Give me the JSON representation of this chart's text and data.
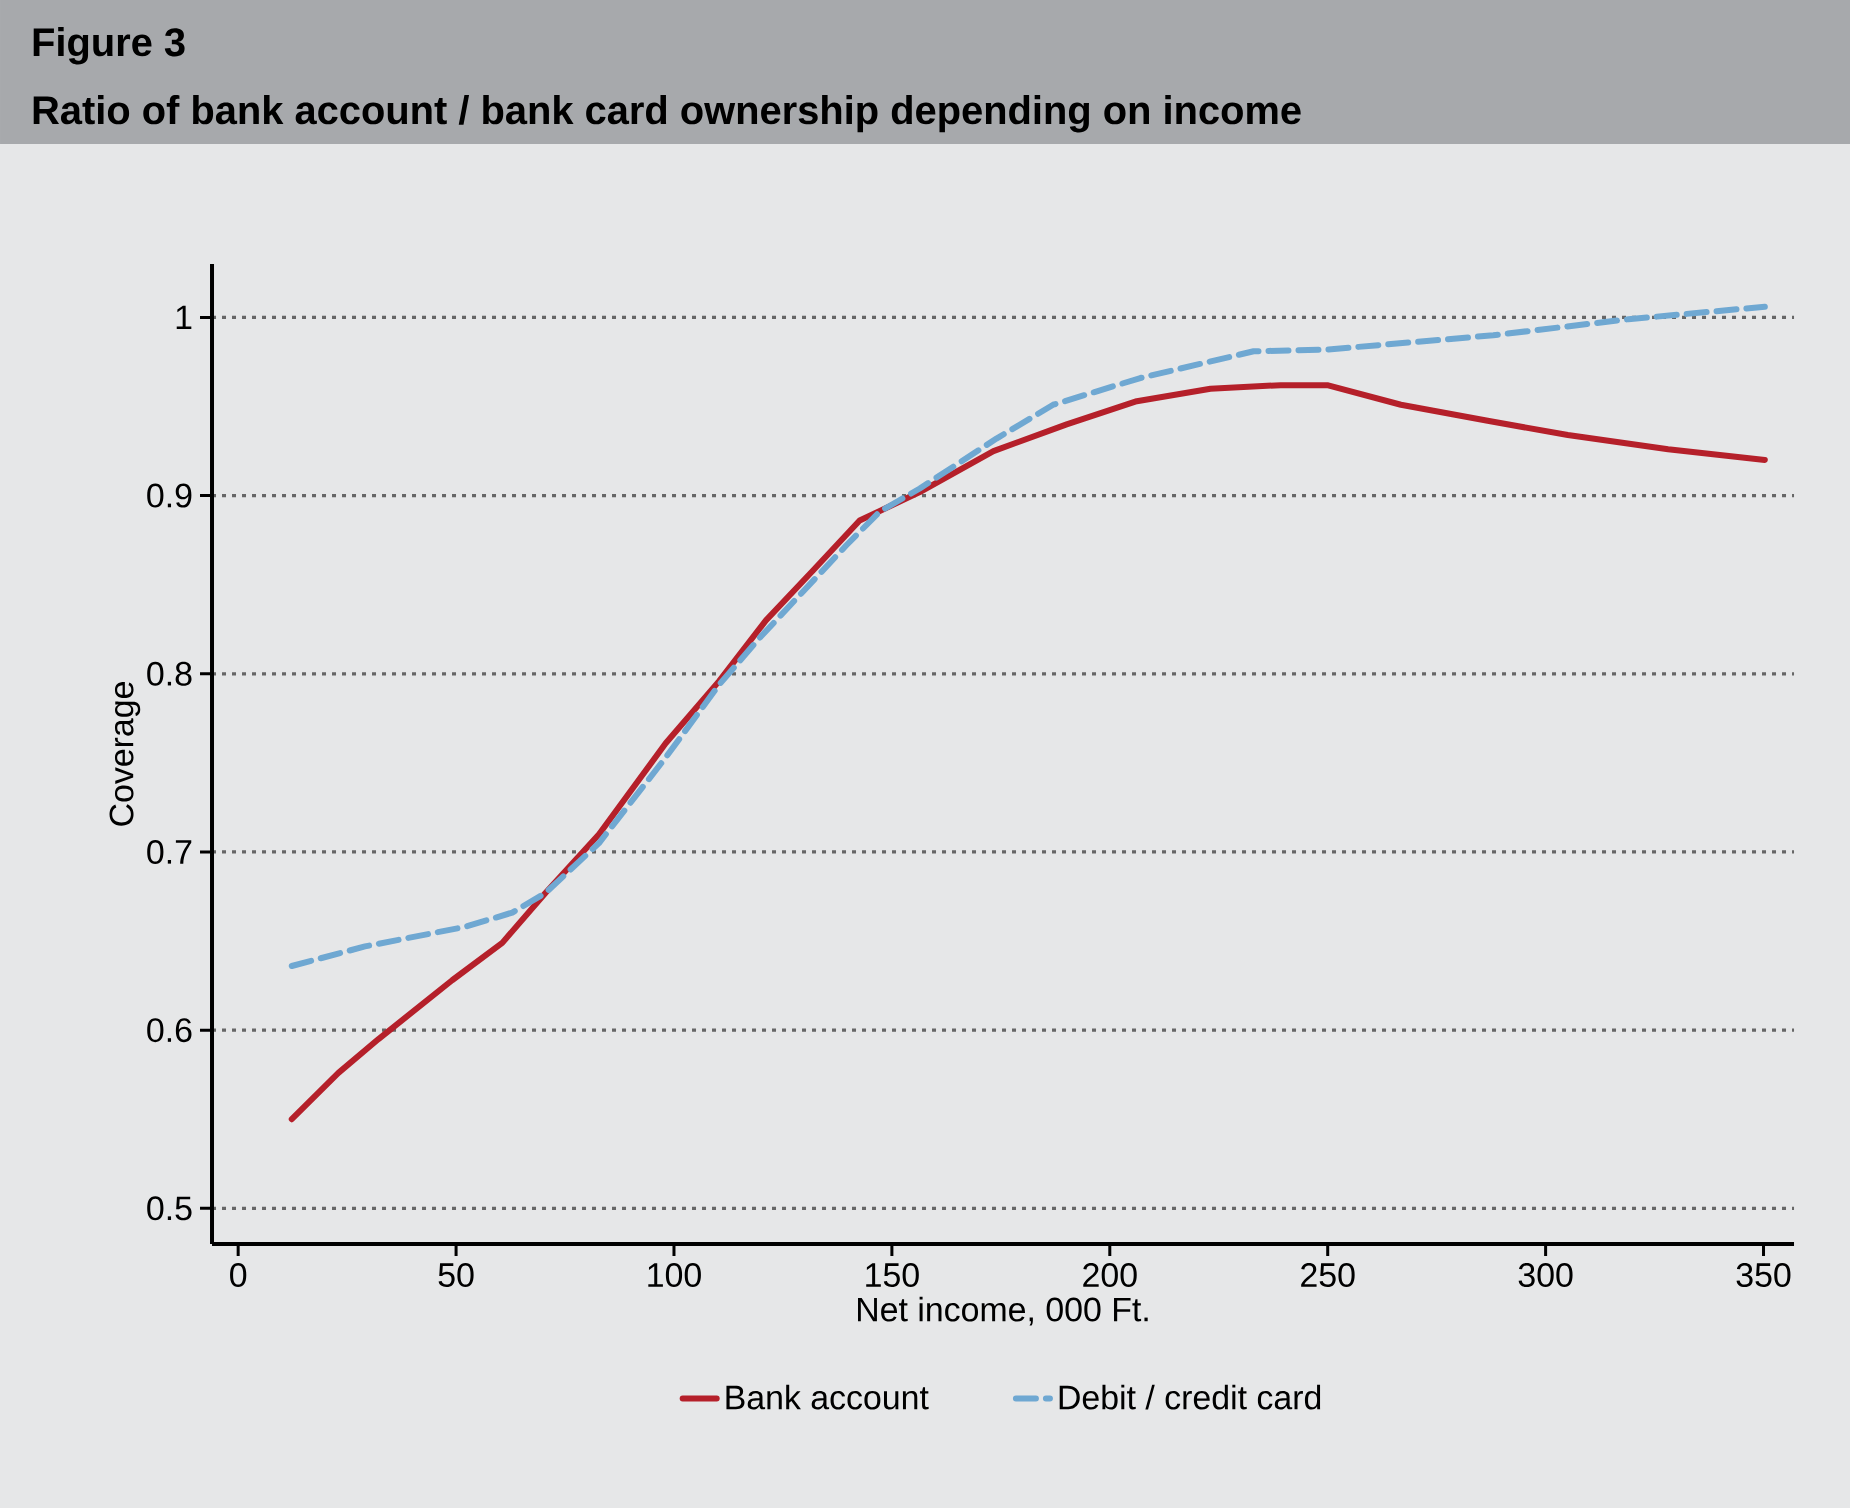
{
  "chart_data": {
    "type": "line",
    "title": "Figure 3",
    "subtitle": "Ratio of bank account / bank card ownership depending on income",
    "xlabel": "Net income, 000 Ft.",
    "ylabel": "Coverage",
    "xlim": [
      -6,
      357
    ],
    "ylim": [
      0.48,
      1.03
    ],
    "xticks": [
      0,
      50,
      100,
      150,
      200,
      250,
      300,
      350
    ],
    "yticks": [
      {
        "value": 0.5,
        "label": "0.5"
      },
      {
        "value": 0.6,
        "label": "0.6"
      },
      {
        "value": 0.7,
        "label": "0.7"
      },
      {
        "value": 0.8,
        "label": "0.8"
      },
      {
        "value": 0.9,
        "label": "0.9"
      },
      {
        "value": 1,
        "label": "1"
      }
    ],
    "grid": "y",
    "legend": "bottom",
    "marker": "none",
    "series": [
      {
        "name": "Bank account",
        "color": "#b5202a",
        "line_style": "solid",
        "x": [
          12.3,
          23,
          32.2,
          49.1,
          60.6,
          70.5,
          82.8,
          98.1,
          110.4,
          121.1,
          131.9,
          142.6,
          156.4,
          173.3,
          190.1,
          206.2,
          223.1,
          239.2,
          249.9,
          266.8,
          286.7,
          305.1,
          328.1,
          350.3
        ],
        "values": [
          0.55,
          0.576,
          0.595,
          0.628,
          0.649,
          0.677,
          0.71,
          0.761,
          0.796,
          0.83,
          0.858,
          0.886,
          0.902,
          0.925,
          0.94,
          0.953,
          0.96,
          0.962,
          0.962,
          0.951,
          0.942,
          0.934,
          0.926,
          0.92
        ]
      },
      {
        "name": "Debit / credit card",
        "color": "#6fa8d2",
        "line_style": "dashed",
        "x": [
          12.3,
          29.1,
          52.1,
          62.9,
          70.5,
          82.8,
          98.1,
          110.4,
          119.6,
          139.5,
          147.2,
          156.4,
          174,
          187,
          207,
          233,
          250,
          288,
          319,
          350.3
        ],
        "values": [
          0.636,
          0.647,
          0.658,
          0.666,
          0.677,
          0.705,
          0.753,
          0.794,
          0.82,
          0.872,
          0.891,
          0.904,
          0.932,
          0.951,
          0.966,
          0.981,
          0.982,
          0.99,
          0.999,
          1.006
        ]
      }
    ]
  }
}
